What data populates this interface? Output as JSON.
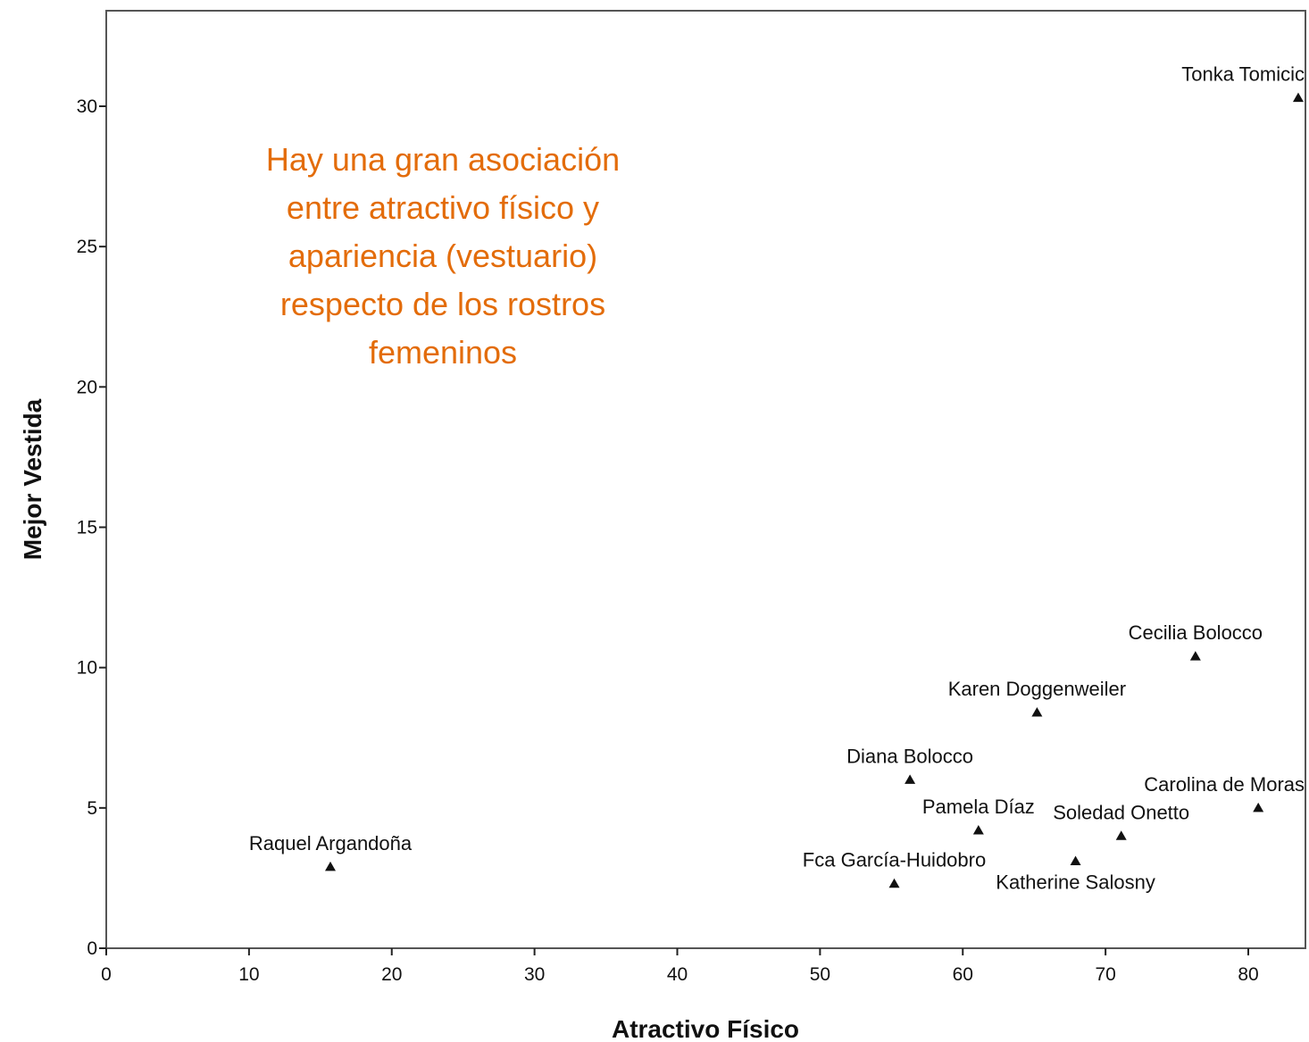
{
  "chart_data": {
    "type": "scatter",
    "title": "",
    "xlabel": "Atractivo Físico",
    "ylabel": "Mejor Vestida",
    "xlim": [
      0,
      84
    ],
    "ylim": [
      0,
      33
    ],
    "x_ticks": [
      0,
      10,
      20,
      30,
      40,
      50,
      60,
      70,
      80
    ],
    "y_ticks": [
      0,
      5,
      10,
      15,
      20,
      25,
      30
    ],
    "grid": false,
    "marker": "triangle",
    "points": [
      {
        "label": "Tonka Tomicic",
        "x": 83.5,
        "y": 30.3
      },
      {
        "label": "Cecilia Bolocco",
        "x": 76.3,
        "y": 10.4
      },
      {
        "label": "Karen Doggenweiler",
        "x": 65.2,
        "y": 8.4
      },
      {
        "label": "Diana Bolocco",
        "x": 56.3,
        "y": 6.0
      },
      {
        "label": "Carolina de Moras",
        "x": 80.7,
        "y": 5.0
      },
      {
        "label": "Pamela Díaz",
        "x": 61.1,
        "y": 4.2
      },
      {
        "label": "Soledad Onetto",
        "x": 71.1,
        "y": 4.0
      },
      {
        "label": "Katherine Salosny",
        "x": 67.9,
        "y": 3.1
      },
      {
        "label": "Fca García-Huidobro",
        "x": 55.2,
        "y": 2.3
      },
      {
        "label": "Raquel Argandoña",
        "x": 15.7,
        "y": 2.9
      }
    ]
  },
  "annotation": {
    "lines": [
      "Hay una gran asociación",
      "entre atractivo físico y",
      "apariencia (vestuario)",
      "respecto de los rostros",
      "femeninos"
    ],
    "color": "#e36c0a"
  }
}
